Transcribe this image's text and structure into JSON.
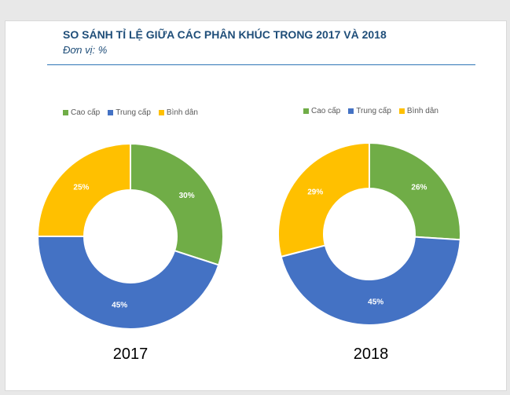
{
  "header": {
    "title": "SO SÁNH TỈ LỆ GIỮA CÁC PHÂN KHÚC TRONG 2017 VÀ 2018",
    "subtitle": "Đơn vị: %"
  },
  "colors": {
    "cao_cap": "#70ad47",
    "trung_cap": "#4472c4",
    "binh_dan": "#ffc000"
  },
  "chart_data": [
    {
      "type": "pie",
      "title": "2017",
      "legend_position": "top",
      "categories": [
        "Cao cấp",
        "Trung cấp",
        "Bình dân"
      ],
      "values": [
        30,
        45,
        25
      ],
      "labels": [
        "30%",
        "45%",
        "25%"
      ]
    },
    {
      "type": "pie",
      "title": "2018",
      "legend_position": "top",
      "categories": [
        "Cao cấp",
        "Trung cấp",
        "Bình dân"
      ],
      "values": [
        26,
        45,
        29
      ],
      "labels": [
        "26%",
        "45%",
        "29%"
      ]
    }
  ]
}
